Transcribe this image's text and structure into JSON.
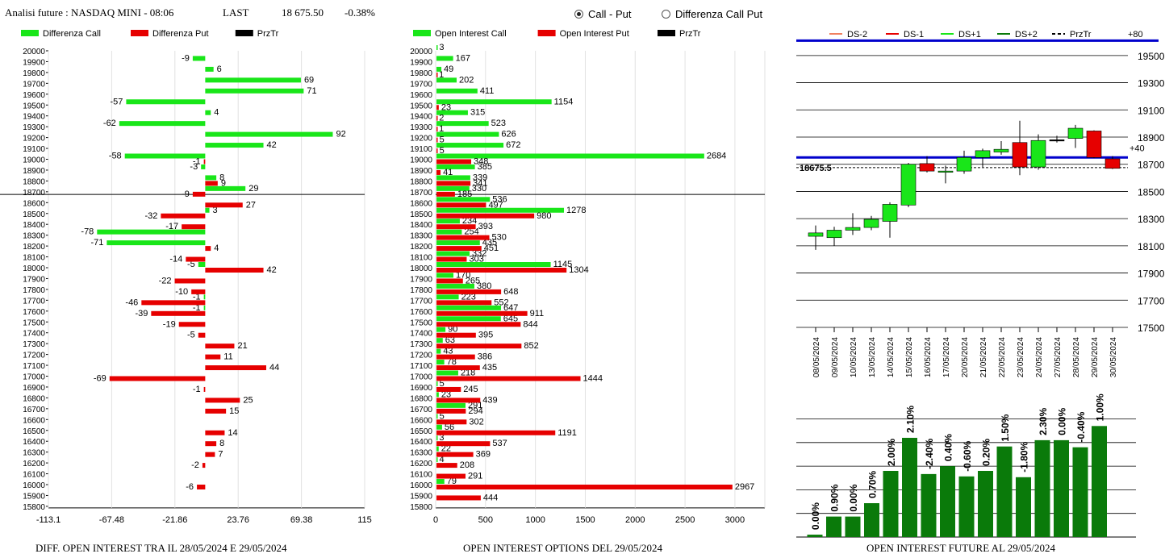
{
  "header": {
    "title": "Analisi future : NASDAQ MINI - 08:06",
    "last_label": "LAST",
    "last_value": "18 675.50",
    "change": "-0.38%"
  },
  "toggle": {
    "options": [
      "Call - Put",
      "Differenza Call Put"
    ],
    "selected": "Call - Put"
  },
  "colors": {
    "green": "#19e619",
    "red": "#e60000",
    "black": "#000000",
    "blue": "#0000cc",
    "dark_green": "#0a7a0a"
  },
  "chart_data": [
    {
      "type": "bar",
      "orientation": "horizontal",
      "caption": "DIFF. OPEN INTEREST TRA IL 28/05/2024 E 29/05/2024",
      "legend": [
        "Differenza Call",
        "Differenza Put",
        "PrzTr"
      ],
      "x_ticks": [
        "-113.1",
        "-67.48",
        "-21.86",
        "23.76",
        "69.38",
        "115"
      ],
      "xlim": [
        -113.1,
        115
      ],
      "strikes": [
        20000,
        19900,
        19800,
        19700,
        19600,
        19500,
        19400,
        19300,
        19200,
        19100,
        19000,
        18900,
        18800,
        18700,
        18600,
        18500,
        18400,
        18300,
        18200,
        18100,
        18000,
        17900,
        17800,
        17700,
        17600,
        17500,
        17400,
        17300,
        17200,
        17100,
        17000,
        16900,
        16800,
        16700,
        16600,
        16500,
        16400,
        16300,
        16200,
        16100,
        16000,
        15900,
        15800
      ],
      "price_line": 18675.5,
      "call_diff": [
        null,
        -9,
        6,
        69,
        71,
        -57,
        4,
        -62,
        92,
        42,
        -58,
        -3,
        8,
        29,
        null,
        3,
        null,
        -78,
        -71,
        null,
        -5,
        null,
        null,
        -1,
        -1,
        null,
        null,
        null,
        null,
        null,
        null,
        null,
        null,
        null,
        null,
        null,
        null,
        null,
        null,
        null,
        null,
        null,
        null
      ],
      "put_diff": [
        null,
        null,
        null,
        null,
        null,
        null,
        null,
        null,
        null,
        null,
        -1,
        null,
        9,
        -9,
        27,
        -32,
        -17,
        null,
        4,
        -14,
        42,
        -22,
        -10,
        -46,
        -39,
        -19,
        -5,
        21,
        11,
        44,
        -69,
        -1,
        25,
        15,
        null,
        14,
        8,
        7,
        -2,
        null,
        -6,
        null,
        null
      ]
    },
    {
      "type": "bar",
      "orientation": "horizontal",
      "caption": "OPEN INTEREST OPTIONS DEL 29/05/2024",
      "legend": [
        "Open Interest Call",
        "Open Interest Put",
        "PrzTr"
      ],
      "x_ticks": [
        "0",
        "500",
        "1000",
        "1500",
        "2000",
        "2500",
        "3000"
      ],
      "xlim": [
        0,
        3300
      ],
      "strikes": [
        20000,
        19900,
        19800,
        19700,
        19600,
        19500,
        19400,
        19300,
        19200,
        19100,
        19000,
        18900,
        18800,
        18700,
        18600,
        18500,
        18400,
        18300,
        18200,
        18100,
        18000,
        17900,
        17800,
        17700,
        17600,
        17500,
        17400,
        17300,
        17200,
        17100,
        17000,
        16900,
        16800,
        16700,
        16600,
        16500,
        16400,
        16300,
        16200,
        16100,
        16000,
        15900,
        15800
      ],
      "price_line": 18675.5,
      "call_oi": [
        3,
        167,
        49,
        202,
        411,
        1154,
        315,
        523,
        626,
        672,
        2684,
        385,
        339,
        330,
        536,
        1278,
        234,
        254,
        435,
        332,
        1145,
        170,
        380,
        223,
        647,
        645,
        90,
        63,
        43,
        78,
        218,
        5,
        23,
        291,
        5,
        56,
        3,
        22,
        4,
        null,
        79,
        null,
        null
      ],
      "put_oi": [
        null,
        null,
        1,
        null,
        null,
        23,
        2,
        1,
        5,
        5,
        348,
        41,
        341,
        185,
        497,
        980,
        393,
        530,
        451,
        303,
        1304,
        265,
        648,
        552,
        911,
        844,
        395,
        852,
        386,
        435,
        1444,
        245,
        439,
        294,
        302,
        1191,
        537,
        369,
        208,
        291,
        2967,
        444,
        null
      ]
    },
    {
      "type": "candlestick",
      "legend": [
        "DS-2",
        "DS-1",
        "DS+1",
        "DS+2",
        "PrzTr",
        "+80"
      ],
      "y_ticks": [
        "19500",
        "19300",
        "19100",
        "18900",
        "18700",
        "18500",
        "18300",
        "18100",
        "17900",
        "17700",
        "17500"
      ],
      "ylim": [
        17500,
        19600
      ],
      "price_label": "18675.5",
      "price": 18675.5,
      "upper_line": 19610,
      "mid_line": 18750,
      "mid_label": "+40",
      "dates": [
        "08/05/2024",
        "09/05/2024",
        "10/05/2024",
        "13/05/2024",
        "14/05/2024",
        "15/05/2024",
        "16/05/2024",
        "17/05/2024",
        "20/05/2024",
        "21/05/2024",
        "22/05/2024",
        "23/05/2024",
        "24/05/2024",
        "27/05/2024",
        "28/05/2024",
        "29/05/2024",
        "30/05/2024"
      ],
      "candles": [
        {
          "o": 18170,
          "c": 18195,
          "h": 18250,
          "l": 18070
        },
        {
          "o": 18160,
          "c": 18215,
          "h": 18240,
          "l": 18100
        },
        {
          "o": 18215,
          "c": 18235,
          "h": 18340,
          "l": 18180
        },
        {
          "o": 18235,
          "c": 18295,
          "h": 18320,
          "l": 18215
        },
        {
          "o": 18280,
          "c": 18405,
          "h": 18420,
          "l": 18160
        },
        {
          "o": 18400,
          "c": 18700,
          "h": 18710,
          "l": 18385
        },
        {
          "o": 18705,
          "c": 18650,
          "h": 18760,
          "l": 18640
        },
        {
          "o": 18645,
          "c": 18650,
          "h": 18690,
          "l": 18560
        },
        {
          "o": 18650,
          "c": 18750,
          "h": 18800,
          "l": 18630
        },
        {
          "o": 18750,
          "c": 18800,
          "h": 18815,
          "l": 18680
        },
        {
          "o": 18790,
          "c": 18810,
          "h": 18870,
          "l": 18770
        },
        {
          "o": 18860,
          "c": 18680,
          "h": 19020,
          "l": 18620
        },
        {
          "o": 18680,
          "c": 18875,
          "h": 18920,
          "l": 18660
        },
        {
          "o": 18880,
          "c": 18880,
          "h": 18910,
          "l": 18860
        },
        {
          "o": 18890,
          "c": 18965,
          "h": 18990,
          "l": 18820
        },
        {
          "o": 18945,
          "c": 18750,
          "h": 18950,
          "l": 18745
        },
        {
          "o": 18740,
          "c": 18670,
          "h": 18760,
          "l": 18665
        }
      ]
    },
    {
      "type": "bar",
      "caption": "OPEN INTEREST FUTURE AL 29/05/2024",
      "labels": [
        "0.00%",
        "0.90%",
        "0.00%",
        "0.70%",
        "2.00%",
        "2.10%",
        "-2.40%",
        "0.40%",
        "-0.60%",
        "0.20%",
        "1.50%",
        "-1.80%",
        "2.30%",
        "0.00%",
        "-0.40%",
        "1.00%"
      ],
      "values": [
        0.03,
        0.26,
        0.26,
        0.43,
        0.84,
        1.26,
        0.8,
        0.9,
        0.77,
        0.84,
        1.15,
        0.76,
        1.23,
        1.23,
        1.14,
        1.41
      ],
      "ylim": [
        0,
        1.7
      ]
    }
  ]
}
